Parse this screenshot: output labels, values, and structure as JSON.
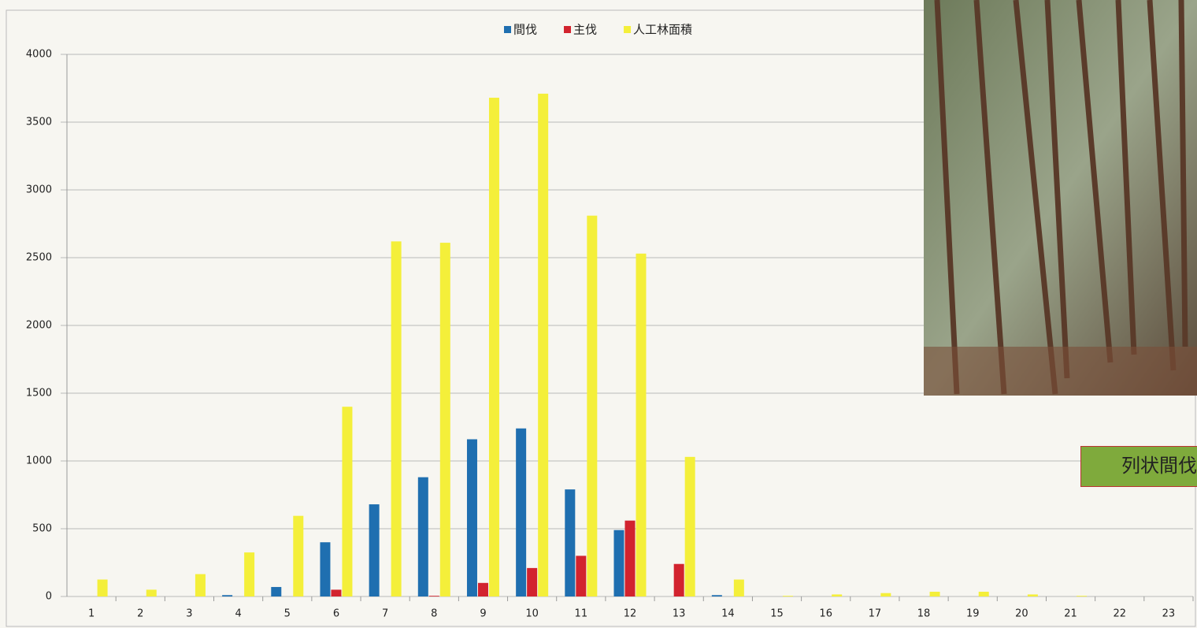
{
  "chart_data": {
    "type": "bar",
    "categories": [
      "1",
      "2",
      "3",
      "4",
      "5",
      "6",
      "7",
      "8",
      "9",
      "10",
      "11",
      "12",
      "13",
      "14",
      "15",
      "16",
      "17",
      "18",
      "19",
      "20",
      "21",
      "22",
      "23"
    ],
    "series": [
      {
        "name": "間伐",
        "color": "#1f6fb0",
        "values": [
          0,
          0,
          0,
          10,
          70,
          400,
          680,
          880,
          1160,
          1240,
          790,
          490,
          0,
          10,
          0,
          0,
          0,
          0,
          0,
          0,
          0,
          0,
          0
        ]
      },
      {
        "name": "主伐",
        "color": "#d2232e",
        "values": [
          0,
          0,
          0,
          0,
          0,
          50,
          0,
          5,
          100,
          210,
          300,
          560,
          240,
          0,
          0,
          0,
          0,
          0,
          0,
          0,
          0,
          0,
          0
        ]
      },
      {
        "name": "人工林面積",
        "color": "#f4ef3a",
        "values": [
          125,
          50,
          165,
          325,
          595,
          1400,
          2620,
          2610,
          3680,
          3710,
          2810,
          2530,
          1030,
          125,
          5,
          15,
          25,
          35,
          35,
          15,
          5,
          0,
          0
        ]
      }
    ],
    "ylim": [
      0,
      4000
    ],
    "yticks": [
      0,
      500,
      1000,
      1500,
      2000,
      2500,
      3000,
      3500,
      4000
    ],
    "grid": true,
    "legend": "top",
    "annotation": "列状間伐"
  }
}
